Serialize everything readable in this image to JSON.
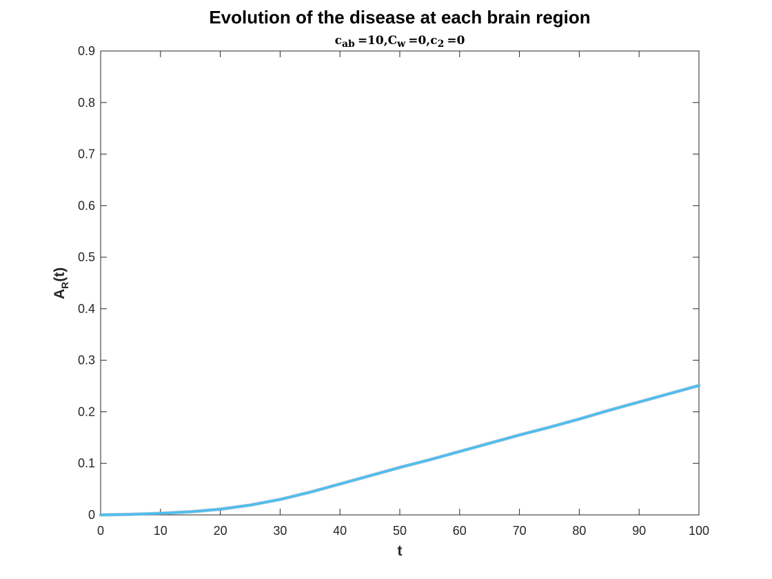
{
  "chart_data": {
    "type": "line",
    "title": "Evolution of the disease at each brain region",
    "subtitle": {
      "c_sub": "ab",
      "c_value": "=10,",
      "C_sub": "w",
      "C_value": "=0,",
      "c2_sub": "2",
      "c2_value": "=0",
      "c_letter": "c",
      "C_letter": "C"
    },
    "xlabel": "t",
    "ylabel": {
      "main": "A",
      "sub": "R",
      "suffix": "(t)"
    },
    "xlim": [
      0,
      100
    ],
    "ylim": [
      0,
      0.9
    ],
    "xticks": [
      "0",
      "10",
      "20",
      "30",
      "40",
      "50",
      "60",
      "70",
      "80",
      "90",
      "100"
    ],
    "yticks": [
      "0",
      "0.1",
      "0.2",
      "0.3",
      "0.4",
      "0.5",
      "0.6",
      "0.7",
      "0.8",
      "0.9"
    ],
    "grid": false,
    "series": [
      {
        "color": "#4DBEEE",
        "x": [
          0,
          5,
          10,
          15,
          20,
          25,
          30,
          35,
          40,
          45,
          50,
          55,
          60,
          65,
          70,
          75,
          80,
          85,
          90,
          95,
          100
        ],
        "y": [
          0,
          0.001,
          0.003,
          0.006,
          0.011,
          0.019,
          0.03,
          0.044,
          0.06,
          0.076,
          0.092,
          0.107,
          0.123,
          0.139,
          0.155,
          0.17,
          0.186,
          0.203,
          0.219,
          0.235,
          0.251
        ]
      }
    ]
  }
}
